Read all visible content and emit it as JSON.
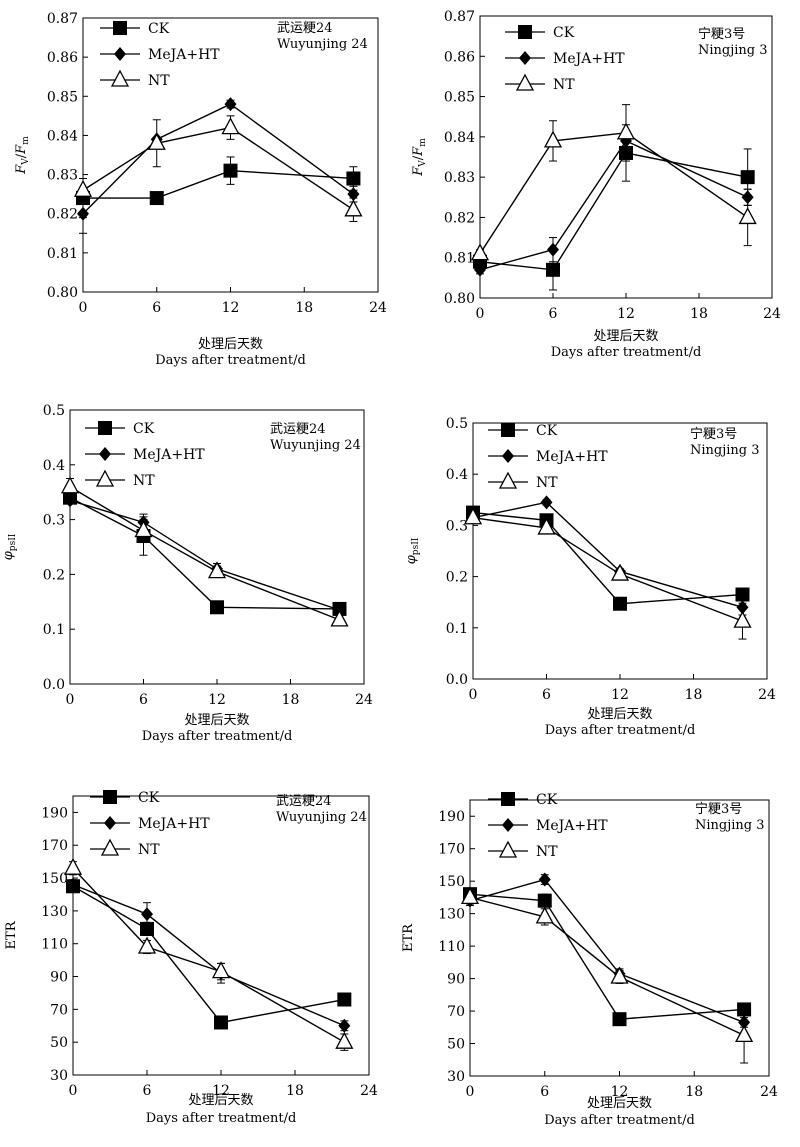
{
  "figure": {
    "x_tick_labels": [
      "0",
      "6",
      "12",
      "18",
      "24"
    ],
    "xlabel_cn": "处理后天数",
    "xlabel_en": "Days after treatment/d",
    "legend": [
      {
        "label": "CK",
        "marker": "square"
      },
      {
        "label": "MeJA+HT",
        "marker": "diamond"
      },
      {
        "label": "NT",
        "marker": "triangle-open"
      }
    ]
  },
  "chart_data": [
    {
      "type": "line",
      "ylabel": "Fv/Fm",
      "variety_cn": "武运粳24",
      "variety_en": "Wuyunjing 24",
      "xlim": [
        0,
        24
      ],
      "ylim": [
        0.8,
        0.87
      ],
      "y_ticks": [
        0.8,
        0.81,
        0.82,
        0.83,
        0.84,
        0.85,
        0.86,
        0.87
      ],
      "y_tick_labels": [
        "0.80",
        "0.81",
        "0.82",
        "0.83",
        "0.84",
        "0.85",
        "0.86",
        "0.87"
      ],
      "x": [
        0,
        6,
        12,
        22
      ],
      "series": [
        {
          "name": "CK",
          "values": [
            0.824,
            0.824,
            0.831,
            0.829
          ],
          "errors": [
            0.005,
            0.0005,
            0.0035,
            0.003
          ]
        },
        {
          "name": "MeJA+HT",
          "values": [
            0.82,
            0.839,
            0.848,
            0.825
          ],
          "errors": [
            0.005,
            0.0005,
            0.001,
            0.002
          ]
        },
        {
          "name": "NT",
          "values": [
            0.826,
            0.838,
            0.842,
            0.821
          ],
          "errors": [
            0.003,
            0.006,
            0.003,
            0.003
          ]
        }
      ]
    },
    {
      "type": "line",
      "ylabel": "Fv/Fm",
      "variety_cn": "宁粳3号",
      "variety_en": "Ningjing 3",
      "xlim": [
        0,
        24
      ],
      "ylim": [
        0.8,
        0.87
      ],
      "y_ticks": [
        0.8,
        0.81,
        0.82,
        0.83,
        0.84,
        0.85,
        0.86,
        0.87
      ],
      "y_tick_labels": [
        "0.80",
        "0.81",
        "0.82",
        "0.83",
        "0.84",
        "0.85",
        "0.86",
        "0.87"
      ],
      "x": [
        0,
        6,
        12,
        22
      ],
      "series": [
        {
          "name": "CK",
          "values": [
            0.809,
            0.807,
            0.836,
            0.83
          ],
          "errors": [
            0.001,
            0.005,
            0.007,
            0.007
          ]
        },
        {
          "name": "MeJA+HT",
          "values": [
            0.807,
            0.812,
            0.839,
            0.825
          ],
          "errors": [
            0.001,
            0.003,
            0.002,
            0.002
          ]
        },
        {
          "name": "NT",
          "values": [
            0.811,
            0.839,
            0.841,
            0.82
          ],
          "errors": [
            0.001,
            0.005,
            0.007,
            0.007
          ]
        }
      ]
    },
    {
      "type": "line",
      "ylabel": "φpsII",
      "variety_cn": "武运粳24",
      "variety_en": "Wuyunjing 24",
      "xlim": [
        0,
        24
      ],
      "ylim": [
        0,
        0.5
      ],
      "y_ticks": [
        0,
        0.1,
        0.2,
        0.3,
        0.4,
        0.5
      ],
      "y_tick_labels": [
        "0.0",
        "0.1",
        "0.2",
        "0.3",
        "0.4",
        "0.5"
      ],
      "x": [
        0,
        6,
        12,
        22
      ],
      "series": [
        {
          "name": "CK",
          "values": [
            0.34,
            0.27,
            0.14,
            0.137
          ],
          "errors": [
            0.01,
            0.035,
            0.005,
            0.005
          ]
        },
        {
          "name": "MeJA+HT",
          "values": [
            0.335,
            0.295,
            0.21,
            0.135
          ],
          "errors": [
            0.005,
            0.015,
            0.01,
            0.005
          ]
        },
        {
          "name": "NT",
          "values": [
            0.36,
            0.28,
            0.205,
            0.117
          ],
          "errors": [
            0.015,
            0.02,
            0.01,
            0.005
          ]
        }
      ]
    },
    {
      "type": "line",
      "ylabel": "φpsII",
      "variety_cn": "宁粳3号",
      "variety_en": "Ningjing 3",
      "xlim": [
        0,
        24
      ],
      "ylim": [
        0,
        0.5
      ],
      "y_ticks": [
        0,
        0.1,
        0.2,
        0.3,
        0.4,
        0.5
      ],
      "y_tick_labels": [
        "0.0",
        "0.1",
        "0.2",
        "0.3",
        "0.4",
        "0.5"
      ],
      "x": [
        0,
        6,
        12,
        22
      ],
      "series": [
        {
          "name": "CK",
          "values": [
            0.325,
            0.31,
            0.147,
            0.165
          ],
          "errors": [
            0.01,
            0.01,
            0.012,
            0.005
          ]
        },
        {
          "name": "MeJA+HT",
          "values": [
            0.315,
            0.345,
            0.21,
            0.14
          ],
          "errors": [
            0.005,
            0.005,
            0.005,
            0.015
          ]
        },
        {
          "name": "NT",
          "values": [
            0.315,
            0.295,
            0.205,
            0.113
          ],
          "errors": [
            0.005,
            0.01,
            0.005,
            0.035
          ]
        }
      ]
    },
    {
      "type": "line",
      "ylabel": "ETR",
      "variety_cn": "武运粳24",
      "variety_en": "Wuyunjing 24",
      "xlim": [
        0,
        24
      ],
      "ylim": [
        30,
        200
      ],
      "y_ticks": [
        30,
        50,
        70,
        90,
        110,
        130,
        150,
        170,
        190
      ],
      "y_tick_labels": [
        "30",
        "50",
        "70",
        "90",
        "110",
        "130",
        "150",
        "170",
        "190"
      ],
      "x": [
        0,
        6,
        12,
        22
      ],
      "series": [
        {
          "name": "CK",
          "values": [
            145,
            119,
            62,
            76
          ],
          "errors": [
            3,
            4,
            2,
            2
          ]
        },
        {
          "name": "MeJA+HT",
          "values": [
            146,
            128,
            92,
            60
          ],
          "errors": [
            3,
            7,
            6,
            3
          ]
        },
        {
          "name": "NT",
          "values": [
            156,
            108,
            93,
            50
          ],
          "errors": [
            4,
            4,
            5,
            5
          ]
        }
      ]
    },
    {
      "type": "line",
      "ylabel": "ETR",
      "variety_cn": "宁粳3号",
      "variety_en": "Ningjing 3",
      "xlim": [
        0,
        24
      ],
      "ylim": [
        30,
        200
      ],
      "y_ticks": [
        30,
        50,
        70,
        90,
        110,
        130,
        150,
        170,
        190
      ],
      "y_tick_labels": [
        "30",
        "50",
        "70",
        "90",
        "110",
        "130",
        "150",
        "170",
        "190"
      ],
      "x": [
        0,
        6,
        12,
        22
      ],
      "series": [
        {
          "name": "CK",
          "values": [
            142,
            138,
            65,
            71
          ],
          "errors": [
            3,
            4,
            2,
            2
          ]
        },
        {
          "name": "MeJA+HT",
          "values": [
            138,
            151,
            93,
            63
          ],
          "errors": [
            3,
            3,
            3,
            3
          ]
        },
        {
          "name": "NT",
          "values": [
            140,
            128,
            91,
            55
          ],
          "errors": [
            4,
            5,
            4,
            17
          ]
        }
      ]
    }
  ]
}
